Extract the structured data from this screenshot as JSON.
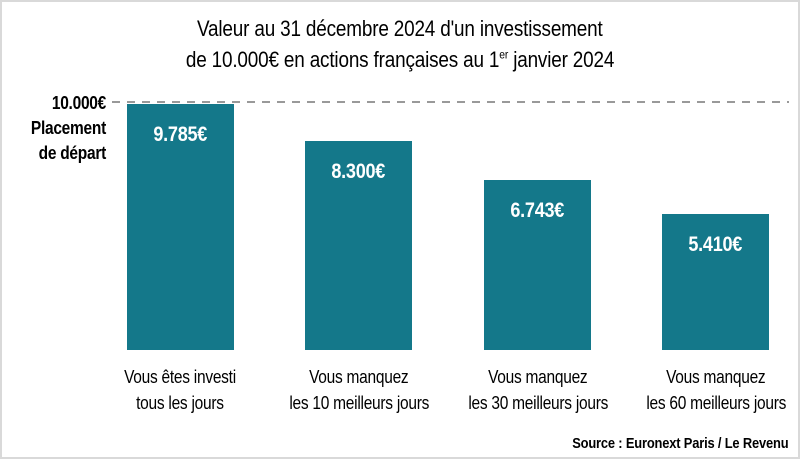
{
  "title": {
    "line1": "Valeur au 31 décembre 2024 d'un investissement",
    "line2_prefix": "de 10.000€ en actions françaises au 1",
    "line2_sup": "er",
    "line2_suffix": " janvier 2024"
  },
  "reference": {
    "value_label": "10.000€",
    "caption_line1": "Placement",
    "caption_line2": "de départ"
  },
  "source": "Source : Euronext Paris / Le Revenu",
  "colors": {
    "bar": "#14788a",
    "dashed_line": "#999999",
    "value_text": "#ffffff",
    "text": "#000000",
    "border": "#d9d9d9"
  },
  "chart_data": {
    "type": "bar",
    "title": "Valeur au 31 décembre 2024 d'un investissement de 10.000€ en actions françaises au 1er janvier 2024",
    "categories": [
      "Vous êtes investi tous les jours",
      "Vous manquez les 10 meilleurs jours",
      "Vous manquez les 30 meilleurs jours",
      "Vous manquez les 60 meilleurs jours"
    ],
    "values": [
      9785,
      8300,
      6743,
      5410
    ],
    "xlabel": "",
    "ylabel": "",
    "ylim": [
      0,
      10000
    ],
    "grid": false,
    "legend": false,
    "reference_line": {
      "value": 10000,
      "label": "10.000€ Placement de départ",
      "style": "dashed"
    },
    "bars": [
      {
        "value": 9785,
        "value_label": "9.785€",
        "label_line1": "Vous êtes investi",
        "label_line2": "tous les jours"
      },
      {
        "value": 8300,
        "value_label": "8.300€",
        "label_line1": "Vous manquez",
        "label_line2": "les 10 meilleurs jours"
      },
      {
        "value": 6743,
        "value_label": "6.743€",
        "label_line1": "Vous manquez",
        "label_line2": "les 30 meilleurs jours"
      },
      {
        "value": 5410,
        "value_label": "5.410€",
        "label_line1": "Vous manquez",
        "label_line2": "les 60 meilleurs jours"
      }
    ]
  }
}
